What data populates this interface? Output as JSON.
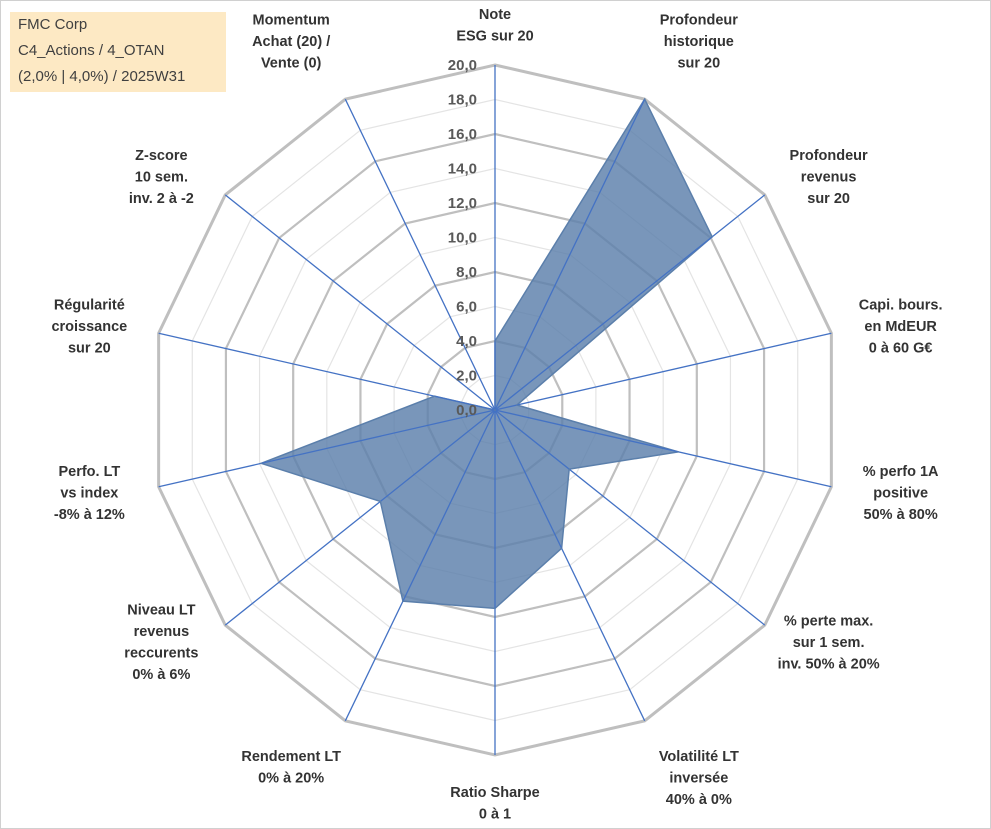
{
  "title_box": {
    "line1": "FMC Corp",
    "line2": "C4_Actions / 4_OTAN",
    "line3": "(2,0% | 4,0%) / 2025W31"
  },
  "colors": {
    "grid": "#c0c0c0",
    "spokes": "#4472c4",
    "fill": "#5b7fab",
    "title_bg": "#fde9c4"
  },
  "chart_data": {
    "type": "radar",
    "rmin": 0,
    "rmax": 20,
    "tick_step": 2,
    "tick_labels": [
      "0,0",
      "2,0",
      "4,0",
      "6,0",
      "8,0",
      "10,0",
      "12,0",
      "14,0",
      "16,0",
      "18,0",
      "20,0"
    ],
    "grid": true,
    "categories": [
      "Note\nESG sur 20",
      "Profondeur\nhistorique\nsur 20",
      "Profondeur\nrevenus\nsur 20",
      "Capi. bours.\nen MdEUR\n0 à 60 G€",
      "% perfo 1A\npositive\n50% à 80%",
      "% perte max.\nsur 1 sem.\ninv. 50% à 20%",
      "Volatilité LT\ninversée\n40% à 0%",
      "Ratio Sharpe\n0 à 1",
      "Rendement LT\n0% à 20%",
      "Niveau LT\nrevenus\nreccurents\n0% à 6%",
      "Perfo. LT\nvs index\n-8% à 12%",
      "Régularité\ncroissance\nsur 20",
      "Z-score\n10 sem.\ninv. 2 à -2",
      "Momentum\nAchat (20) /\nVente (0)"
    ],
    "series": [
      {
        "values": [
          4.0,
          20.0,
          16.1,
          1.3,
          10.9,
          5.5,
          8.9,
          11.5,
          12.3,
          8.5,
          13.9,
          3.6,
          0.0,
          0.0
        ]
      }
    ]
  }
}
